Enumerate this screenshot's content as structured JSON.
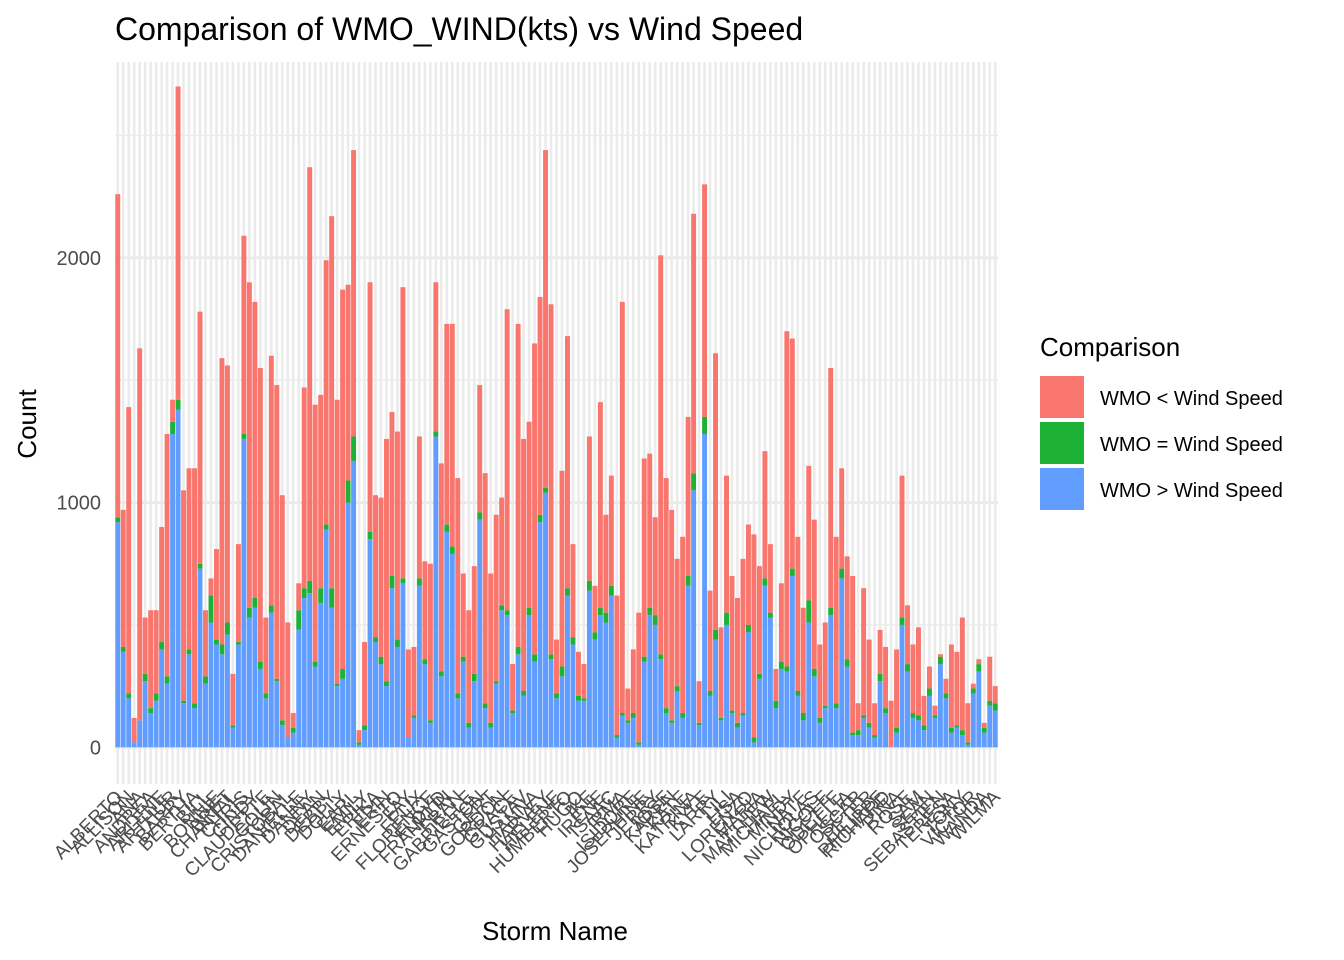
{
  "chart_data": {
    "type": "bar",
    "stacked": true,
    "title": "Comparison of WMO_WIND(kts) vs Wind Speed",
    "xlabel": "Storm Name",
    "ylabel": "Count",
    "ylim": [
      -150,
      2800
    ],
    "y_ticks": [
      0,
      1000,
      2000
    ],
    "grid": true,
    "legend": {
      "title": "Comparison",
      "position": "right"
    },
    "x_tick_labels_visible": [
      "ALBERTO",
      "ALLISON",
      "ANA",
      "ANDREA",
      "ARLENE",
      "ARTHUR",
      "BARRY",
      "BERTHA",
      "BILL",
      "BONNIE",
      "BRET",
      "CHANTAL",
      "CHRIS",
      "CINDY",
      "CLAUDETTE",
      "COLIN",
      "CRISTOBAL",
      "DANIELLE",
      "DANNY",
      "DEAN",
      "DEBBY",
      "DOLLY",
      "EARL",
      "EMILY",
      "ERIKA",
      "ERIN",
      "ERNESTO",
      "FAY",
      "FELIX",
      "FLORENCE",
      "FLOYD",
      "FRANKLIN",
      "FRAN",
      "GABRIELLE",
      "GASTON",
      "GERT",
      "GORDON",
      "GRACE",
      "GUSTAV",
      "HANNA",
      "HARVEY",
      "HELENE",
      "HUMBERTO",
      "HUGO",
      "IKE",
      "IRENE",
      "ISAAC",
      "IRMA",
      "ISIDORE",
      "JOSEPHINE",
      "JERRY",
      "JOSE",
      "KAREN",
      "KATE",
      "KATRINA",
      "KYLE",
      "LARRY",
      "LILI",
      "LISA",
      "LORENZO",
      "MARIA",
      "MATTHEW",
      "MICHAEL",
      "MINDY",
      "NATE",
      "NICHOLAS",
      "NICOLE",
      "ODETTE",
      "OPHELIA",
      "OSCAR",
      "PETER",
      "PHILIPPE",
      "RICHARD",
      "RINA",
      "ROSE",
      "SAM",
      "SEAN",
      "SEBASTIEN",
      "TERESA",
      "TONY",
      "VICTOR",
      "WANDA",
      "WILMA"
    ],
    "series": [
      {
        "name": "WMO > Wind Speed",
        "color": "#619CFF",
        "values": [
          920,
          390,
          200,
          20,
          110,
          270,
          140,
          190,
          400,
          260,
          1280,
          1380,
          180,
          380,
          160,
          730,
          260,
          510,
          420,
          380,
          460,
          80,
          420,
          1260,
          530,
          570,
          320,
          200,
          550,
          270,
          90,
          40,
          60,
          480,
          610,
          630,
          330,
          590,
          890,
          570,
          250,
          280,
          1000,
          1170,
          10,
          70,
          850,
          430,
          340,
          250,
          650,
          410,
          670,
          40,
          120,
          660,
          340,
          100,
          1270,
          290,
          880,
          790,
          200,
          350,
          80,
          270,
          930,
          160,
          80,
          260,
          560,
          540,
          140,
          380,
          210,
          540,
          350,
          920,
          1040,
          360,
          200,
          290,
          620,
          420,
          190,
          190,
          640,
          440,
          540,
          510,
          620,
          40,
          130,
          100,
          120,
          10,
          350,
          540,
          500,
          360,
          140,
          100,
          230,
          120,
          660,
          1050,
          90,
          1280,
          210,
          440,
          110,
          500,
          140,
          80,
          130,
          470,
          20,
          280,
          660,
          530,
          160,
          320,
          310,
          700,
          210,
          110,
          510,
          290,
          100,
          160,
          540,
          160,
          690,
          330,
          50,
          50,
          120,
          80,
          40,
          270,
          140,
          0,
          60,
          500,
          310,
          120,
          110,
          70,
          210,
          120,
          340,
          200,
          60,
          80,
          50,
          10,
          220,
          310,
          60,
          170,
          150
        ],
        "colors": []
      },
      {
        "name": "WMO = Wind Speed",
        "color": "#1DB235",
        "values": [
          20,
          20,
          20,
          0,
          0,
          30,
          20,
          30,
          30,
          30,
          50,
          40,
          10,
          20,
          20,
          20,
          30,
          110,
          20,
          40,
          50,
          10,
          10,
          20,
          40,
          40,
          30,
          20,
          30,
          10,
          20,
          0,
          20,
          80,
          40,
          50,
          20,
          60,
          20,
          80,
          10,
          40,
          90,
          100,
          10,
          20,
          30,
          20,
          30,
          20,
          50,
          30,
          20,
          0,
          10,
          30,
          20,
          10,
          20,
          20,
          30,
          30,
          20,
          20,
          20,
          30,
          30,
          20,
          20,
          10,
          20,
          20,
          10,
          30,
          20,
          30,
          30,
          30,
          20,
          20,
          20,
          40,
          30,
          30,
          20,
          10,
          40,
          30,
          30,
          40,
          40,
          10,
          10,
          10,
          20,
          10,
          20,
          30,
          40,
          20,
          20,
          10,
          20,
          20,
          40,
          70,
          10,
          70,
          20,
          40,
          10,
          50,
          10,
          20,
          10,
          30,
          20,
          20,
          30,
          20,
          30,
          30,
          20,
          30,
          20,
          30,
          90,
          30,
          20,
          10,
          30,
          20,
          40,
          30,
          10,
          20,
          10,
          20,
          10,
          30,
          20,
          0,
          20,
          30,
          30,
          20,
          20,
          20,
          30,
          10,
          30,
          20,
          20,
          10,
          20,
          10,
          20,
          30,
          20,
          20,
          30
        ],
        "colors": []
      },
      {
        "name": "WMO < Wind Speed",
        "color": "#F8766D",
        "values": [
          1320,
          560,
          1170,
          100,
          1520,
          230,
          400,
          340,
          470,
          990,
          90,
          1280,
          860,
          740,
          960,
          1030,
          270,
          70,
          370,
          1170,
          1050,
          210,
          400,
          810,
          1330,
          1210,
          1200,
          310,
          1020,
          1200,
          920,
          470,
          60,
          110,
          820,
          1690,
          1050,
          790,
          1080,
          1520,
          1160,
          1550,
          800,
          1170,
          50,
          340,
          1020,
          580,
          650,
          990,
          670,
          850,
          1190,
          360,
          280,
          580,
          400,
          640,
          610,
          850,
          820,
          910,
          880,
          340,
          460,
          440,
          520,
          940,
          610,
          680,
          440,
          1230,
          190,
          1320,
          1030,
          760,
          1270,
          890,
          1380,
          1430,
          220,
          800,
          1030,
          380,
          180,
          140,
          590,
          190,
          840,
          400,
          450,
          570,
          1680,
          130,
          260,
          530,
          810,
          630,
          400,
          1630,
          940,
          860,
          520,
          720,
          650,
          1060,
          170,
          950,
          410,
          1130,
          370,
          560,
          550,
          510,
          630,
          410,
          830,
          440,
          520,
          280,
          130,
          320,
          1370,
          940,
          630,
          430,
          550,
          610,
          300,
          340,
          980,
          680,
          410,
          420,
          640,
          110,
          520,
          340,
          130,
          180,
          250,
          190,
          320,
          580,
          240,
          280,
          360,
          120,
          90,
          40,
          10,
          60,
          340,
          300,
          460,
          160,
          20,
          20,
          20,
          180,
          70,
          400,
          340,
          160,
          270
        ],
        "colors": []
      }
    ]
  }
}
